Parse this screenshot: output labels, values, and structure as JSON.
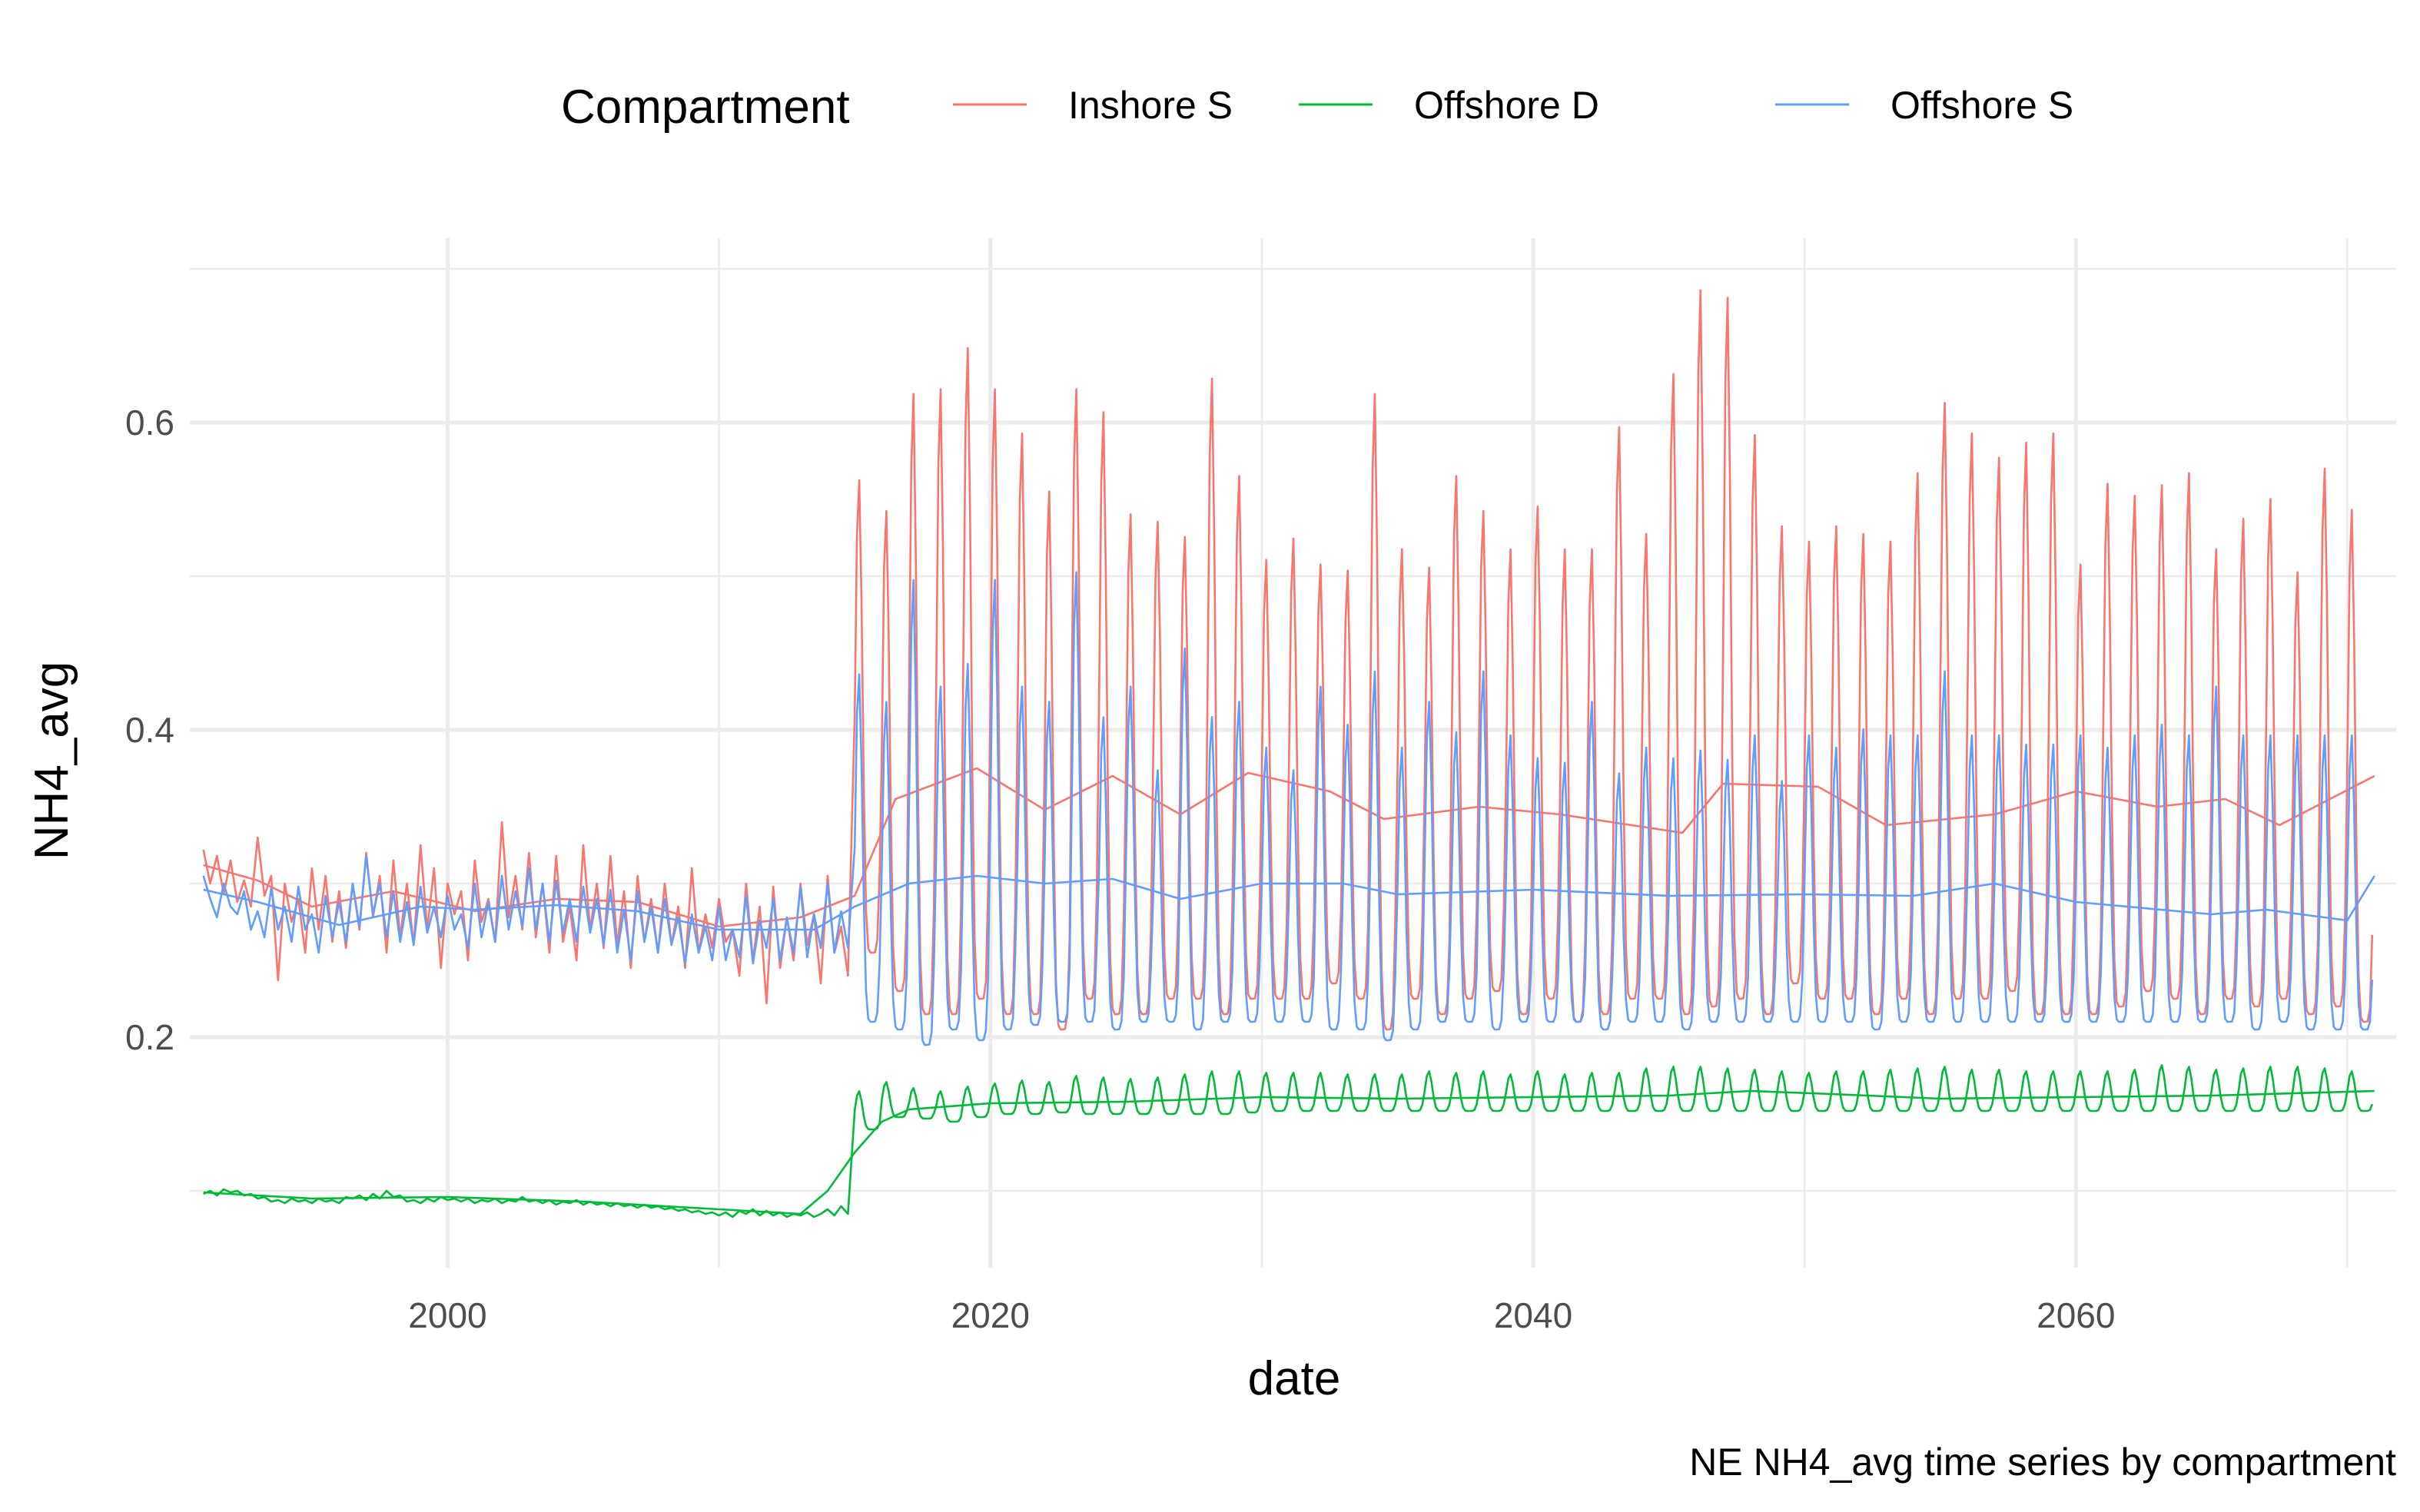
{
  "chart_data": {
    "type": "line",
    "title": "",
    "caption": "NE NH4_avg time series by compartment",
    "xlabel": "date",
    "ylabel": "NH4_avg",
    "x_unit": "year",
    "xlim": [
      1990.5,
      2071.8
    ],
    "ylim": [
      0.05,
      0.72
    ],
    "x_ticks": [
      2000,
      2020,
      2040,
      2060
    ],
    "x_tick_labels": [
      "2000",
      "2020",
      "2040",
      "2060"
    ],
    "y_ticks": [
      0.2,
      0.4,
      0.6
    ],
    "y_tick_labels": [
      "0.2",
      "0.4",
      "0.6"
    ],
    "grid": true,
    "legend": {
      "title": "Compartment",
      "position": "top",
      "entries": [
        "Inshore S",
        "Offshore D",
        "Offshore S"
      ]
    },
    "series": [
      {
        "name": "Inshore S",
        "color": "#F8766D",
        "kind": "monthly",
        "segments": [
          {
            "from": 1991.0,
            "to": 2015.0,
            "points_per_year": 4,
            "values": [
              0.322,
              0.3,
              0.318,
              0.293,
              0.315,
              0.288,
              0.302,
              0.285,
              0.33,
              0.292,
              0.305,
              0.237,
              0.3,
              0.275,
              0.29,
              0.255,
              0.31,
              0.27,
              0.305,
              0.262,
              0.295,
              0.258,
              0.3,
              0.27,
              0.32,
              0.278,
              0.305,
              0.255,
              0.315,
              0.265,
              0.3,
              0.26,
              0.325,
              0.27,
              0.31,
              0.245,
              0.3,
              0.28,
              0.295,
              0.25,
              0.315,
              0.275,
              0.29,
              0.262,
              0.34,
              0.278,
              0.305,
              0.27,
              0.32,
              0.265,
              0.3,
              0.255,
              0.318,
              0.262,
              0.285,
              0.25,
              0.325,
              0.27,
              0.3,
              0.258,
              0.318,
              0.26,
              0.295,
              0.245,
              0.305,
              0.262,
              0.29,
              0.255,
              0.3,
              0.26,
              0.285,
              0.245,
              0.31,
              0.255,
              0.28,
              0.258,
              0.29,
              0.262,
              0.27,
              0.24,
              0.3,
              0.25,
              0.285,
              0.222,
              0.298,
              0.245,
              0.278,
              0.25,
              0.3,
              0.26,
              0.28,
              0.235,
              0.305,
              0.255,
              0.272,
              0.24
            ]
          },
          {
            "from": 2015.0,
            "to": 2071.0,
            "points_per_year": 12,
            "trough_values_by_year": [
              0.255,
              0.23,
              0.215,
              0.215,
              0.225,
              0.215,
              0.215,
              0.205,
              0.225,
              0.215,
              0.215,
              0.225,
              0.225,
              0.215,
              0.225,
              0.225,
              0.225,
              0.235,
              0.225,
              0.205,
              0.225,
              0.215,
              0.225,
              0.23,
              0.215,
              0.225,
              0.21,
              0.215,
              0.225,
              0.225,
              0.215,
              0.22,
              0.225,
              0.215,
              0.235,
              0.225,
              0.225,
              0.215,
              0.225,
              0.215,
              0.225,
              0.225,
              0.23,
              0.215,
              0.215,
              0.215,
              0.22,
              0.23,
              0.225,
              0.215,
              0.225,
              0.22,
              0.225,
              0.215,
              0.22,
              0.21
            ],
            "peak_values_by_year": [
              0.565,
              0.545,
              0.622,
              0.625,
              0.652,
              0.625,
              0.596,
              0.558,
              0.625,
              0.61,
              0.543,
              0.538,
              0.528,
              0.632,
              0.568,
              0.513,
              0.527,
              0.51,
              0.506,
              0.622,
              0.52,
              0.508,
              0.568,
              0.545,
              0.52,
              0.548,
              0.52,
              0.52,
              0.6,
              0.53,
              0.635,
              0.69,
              0.685,
              0.595,
              0.535,
              0.525,
              0.535,
              0.53,
              0.525,
              0.57,
              0.616,
              0.596,
              0.58,
              0.59,
              0.596,
              0.51,
              0.563,
              0.555,
              0.562,
              0.57,
              0.52,
              0.54,
              0.553,
              0.505,
              0.573,
              0.546
            ]
          }
        ],
        "trend": {
          "x": [
            1991.0,
            1993.0,
            1995.0,
            1998.0,
            2001.0,
            2004.0,
            2007.0,
            2010.0,
            2013.0,
            2015.0,
            2016.5,
            2019.5,
            2022.0,
            2024.5,
            2027.0,
            2029.5,
            2032.5,
            2034.5,
            2038.0,
            2041.0,
            2045.5,
            2047.0,
            2050.5,
            2053.0,
            2057.0,
            2060.0,
            2063.0,
            2065.5,
            2067.5,
            2071.0
          ],
          "y": [
            0.312,
            0.302,
            0.285,
            0.295,
            0.282,
            0.29,
            0.288,
            0.272,
            0.278,
            0.292,
            0.355,
            0.375,
            0.348,
            0.37,
            0.345,
            0.372,
            0.36,
            0.342,
            0.35,
            0.345,
            0.333,
            0.365,
            0.363,
            0.338,
            0.345,
            0.36,
            0.35,
            0.355,
            0.338,
            0.37
          ]
        }
      },
      {
        "name": "Offshore D",
        "color": "#00BA38",
        "kind": "monthly",
        "segments": [
          {
            "from": 1991.0,
            "to": 2015.0,
            "points_per_year": 4,
            "values": [
              0.098,
              0.1,
              0.097,
              0.101,
              0.099,
              0.1,
              0.097,
              0.098,
              0.095,
              0.096,
              0.093,
              0.094,
              0.092,
              0.095,
              0.093,
              0.094,
              0.092,
              0.095,
              0.093,
              0.094,
              0.092,
              0.096,
              0.095,
              0.097,
              0.094,
              0.098,
              0.095,
              0.1,
              0.096,
              0.097,
              0.093,
              0.094,
              0.092,
              0.095,
              0.093,
              0.096,
              0.094,
              0.095,
              0.093,
              0.095,
              0.092,
              0.094,
              0.093,
              0.095,
              0.092,
              0.094,
              0.093,
              0.096,
              0.093,
              0.094,
              0.092,
              0.094,
              0.091,
              0.093,
              0.092,
              0.094,
              0.091,
              0.093,
              0.091,
              0.092,
              0.09,
              0.092,
              0.09,
              0.091,
              0.089,
              0.091,
              0.089,
              0.09,
              0.088,
              0.089,
              0.087,
              0.088,
              0.086,
              0.087,
              0.085,
              0.086,
              0.084,
              0.086,
              0.083,
              0.087,
              0.085,
              0.088,
              0.084,
              0.087,
              0.084,
              0.086,
              0.083,
              0.085,
              0.084,
              0.086,
              0.083,
              0.085,
              0.088,
              0.084,
              0.09,
              0.085
            ]
          },
          {
            "from": 2015.0,
            "to": 2071.0,
            "points_per_year": 12,
            "trough_values_by_year": [
              0.14,
              0.148,
              0.147,
              0.145,
              0.148,
              0.15,
              0.15,
              0.151,
              0.15,
              0.15,
              0.15,
              0.15,
              0.15,
              0.15,
              0.151,
              0.152,
              0.152,
              0.152,
              0.152,
              0.152,
              0.152,
              0.152,
              0.152,
              0.152,
              0.152,
              0.152,
              0.152,
              0.152,
              0.152,
              0.152,
              0.152,
              0.152,
              0.152,
              0.152,
              0.152,
              0.152,
              0.152,
              0.152,
              0.152,
              0.152,
              0.152,
              0.152,
              0.152,
              0.152,
              0.152,
              0.152,
              0.152,
              0.152,
              0.152,
              0.152,
              0.152,
              0.152,
              0.152,
              0.152,
              0.152,
              0.152
            ],
            "peak_values_by_year": [
              0.165,
              0.171,
              0.167,
              0.165,
              0.168,
              0.17,
              0.172,
              0.171,
              0.175,
              0.174,
              0.173,
              0.174,
              0.176,
              0.178,
              0.178,
              0.177,
              0.177,
              0.177,
              0.176,
              0.176,
              0.176,
              0.178,
              0.177,
              0.178,
              0.176,
              0.178,
              0.176,
              0.177,
              0.177,
              0.18,
              0.181,
              0.181,
              0.18,
              0.179,
              0.178,
              0.177,
              0.178,
              0.178,
              0.179,
              0.18,
              0.181,
              0.179,
              0.179,
              0.178,
              0.178,
              0.178,
              0.178,
              0.179,
              0.182,
              0.181,
              0.179,
              0.18,
              0.181,
              0.181,
              0.18,
              0.178
            ]
          }
        ],
        "trend": {
          "x": [
            1991.0,
            1995.0,
            2000.0,
            2005.0,
            2010.0,
            2013.0,
            2014.0,
            2015.0,
            2016.0,
            2017.0,
            2020.0,
            2025.0,
            2030.0,
            2035.0,
            2040.0,
            2045.0,
            2048.0,
            2051.0,
            2055.0,
            2060.0,
            2065.0,
            2071.0
          ],
          "y": [
            0.099,
            0.095,
            0.096,
            0.093,
            0.088,
            0.085,
            0.1,
            0.125,
            0.145,
            0.153,
            0.157,
            0.158,
            0.161,
            0.16,
            0.161,
            0.162,
            0.165,
            0.163,
            0.16,
            0.161,
            0.162,
            0.165
          ]
        }
      },
      {
        "name": "Offshore S",
        "color": "#619CFF",
        "kind": "monthly",
        "segments": [
          {
            "from": 1991.0,
            "to": 2015.0,
            "points_per_year": 4,
            "values": [
              0.305,
              0.29,
              0.278,
              0.3,
              0.285,
              0.28,
              0.295,
              0.27,
              0.282,
              0.265,
              0.297,
              0.27,
              0.285,
              0.262,
              0.298,
              0.27,
              0.28,
              0.255,
              0.292,
              0.265,
              0.288,
              0.262,
              0.3,
              0.272,
              0.318,
              0.28,
              0.3,
              0.265,
              0.295,
              0.262,
              0.288,
              0.26,
              0.298,
              0.268,
              0.285,
              0.265,
              0.292,
              0.27,
              0.28,
              0.258,
              0.3,
              0.265,
              0.288,
              0.262,
              0.305,
              0.27,
              0.295,
              0.272,
              0.31,
              0.27,
              0.3,
              0.262,
              0.302,
              0.268,
              0.29,
              0.262,
              0.298,
              0.268,
              0.29,
              0.26,
              0.296,
              0.255,
              0.283,
              0.25,
              0.295,
              0.262,
              0.285,
              0.255,
              0.29,
              0.26,
              0.278,
              0.248,
              0.28,
              0.255,
              0.272,
              0.25,
              0.285,
              0.25,
              0.27,
              0.252,
              0.292,
              0.248,
              0.276,
              0.258,
              0.29,
              0.25,
              0.278,
              0.255,
              0.298,
              0.252,
              0.28,
              0.258,
              0.3,
              0.255,
              0.282,
              0.258
            ]
          },
          {
            "from": 2015.0,
            "to": 2071.0,
            "points_per_year": 12,
            "trough_values_by_year": [
              0.21,
              0.205,
              0.195,
              0.205,
              0.198,
              0.205,
              0.208,
              0.21,
              0.21,
              0.205,
              0.21,
              0.21,
              0.205,
              0.21,
              0.21,
              0.21,
              0.21,
              0.205,
              0.205,
              0.198,
              0.205,
              0.21,
              0.21,
              0.205,
              0.21,
              0.21,
              0.21,
              0.205,
              0.21,
              0.21,
              0.205,
              0.21,
              0.21,
              0.21,
              0.21,
              0.21,
              0.21,
              0.205,
              0.21,
              0.21,
              0.21,
              0.21,
              0.21,
              0.21,
              0.21,
              0.21,
              0.21,
              0.21,
              0.21,
              0.21,
              0.21,
              0.205,
              0.21,
              0.205,
              0.205,
              0.205
            ],
            "peak_values_by_year": [
              0.438,
              0.42,
              0.5,
              0.43,
              0.445,
              0.5,
              0.43,
              0.42,
              0.505,
              0.41,
              0.43,
              0.375,
              0.455,
              0.41,
              0.42,
              0.39,
              0.375,
              0.43,
              0.405,
              0.44,
              0.39,
              0.42,
              0.4,
              0.44,
              0.398,
              0.383,
              0.38,
              0.42,
              0.373,
              0.39,
              0.383,
              0.388,
              0.382,
              0.398,
              0.368,
              0.398,
              0.39,
              0.402,
              0.398,
              0.398,
              0.44,
              0.398,
              0.398,
              0.392,
              0.392,
              0.398,
              0.39,
              0.398,
              0.405,
              0.398,
              0.43,
              0.398,
              0.398,
              0.398,
              0.398,
              0.398
            ]
          }
        ],
        "trend": {
          "x": [
            1991.0,
            1993.0,
            1996.0,
            1999.0,
            2001.0,
            2004.0,
            2007.0,
            2010.0,
            2013.5,
            2015.0,
            2017.0,
            2019.5,
            2022.0,
            2024.5,
            2027.0,
            2030.0,
            2033.0,
            2035.0,
            2040.0,
            2045.0,
            2050.0,
            2054.0,
            2057.0,
            2060.0,
            2065.0,
            2067.0,
            2070.0,
            2071.0
          ],
          "y": [
            0.296,
            0.288,
            0.273,
            0.285,
            0.283,
            0.286,
            0.282,
            0.27,
            0.27,
            0.285,
            0.3,
            0.305,
            0.3,
            0.303,
            0.29,
            0.3,
            0.3,
            0.293,
            0.296,
            0.292,
            0.293,
            0.292,
            0.3,
            0.288,
            0.28,
            0.283,
            0.276,
            0.305
          ]
        }
      }
    ]
  }
}
